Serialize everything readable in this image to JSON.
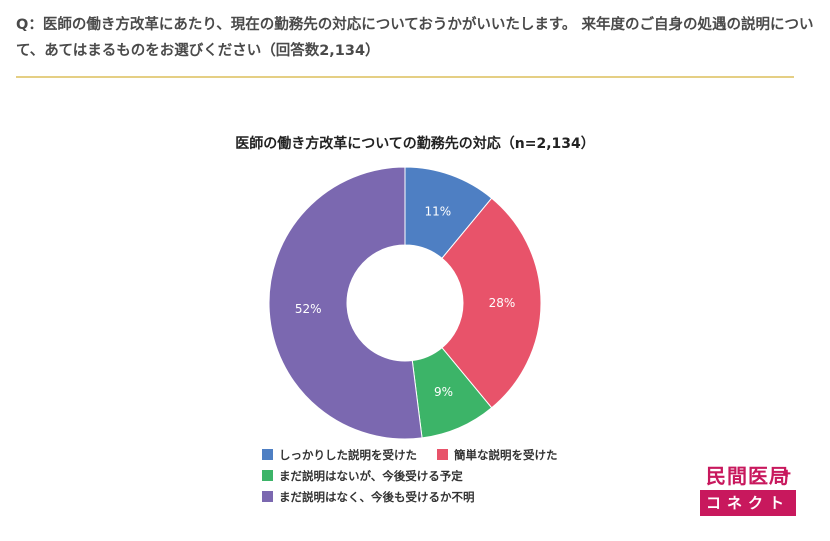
{
  "question": "Q：医師の働き方改革にあたり、現在の勤務先の対応についておうかがいいたします。 来年度のご自身の処遇の説明について、あてはまるものをお選びください（回答数2,134）",
  "chart_data": {
    "type": "pie",
    "title": "医師の働き方改革についての勤務先の対応（n=2,134）",
    "categories": [
      "しっかりした説明を受けた",
      "簡単な説明を受けた",
      "まだ説明はないが、今後受ける予定",
      "まだ説明はなく、今後も受けるか不明"
    ],
    "values": [
      11,
      28,
      9,
      52
    ],
    "labels": [
      "11%",
      "28%",
      "9%",
      "52%"
    ],
    "colors": [
      "#4e7fc3",
      "#e8536a",
      "#3cb468",
      "#7b68b0"
    ],
    "legend_position": "bottom"
  },
  "logo": {
    "top": "民間医局",
    "bottom": "コネクト"
  }
}
